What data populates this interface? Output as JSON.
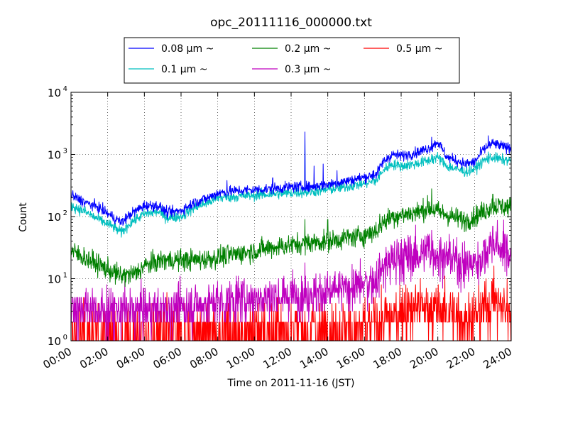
{
  "chart_data": {
    "type": "line",
    "title": "opc_20111116_000000.txt",
    "xlabel": "Time on 2011-11-16 (JST)",
    "ylabel": "Count",
    "yscale": "log",
    "xlim": [
      "00:00",
      "24:00"
    ],
    "ylim": [
      1,
      10000
    ],
    "grid": true,
    "legend_position": "top-center, above plot",
    "x_ticks": [
      "00:00",
      "02:00",
      "04:00",
      "06:00",
      "08:00",
      "10:00",
      "12:00",
      "14:00",
      "16:00",
      "18:00",
      "20:00",
      "22:00",
      "24:00"
    ],
    "y_ticks": [
      {
        "value": 1,
        "base": "10",
        "exp": "0"
      },
      {
        "value": 10,
        "base": "10",
        "exp": "1"
      },
      {
        "value": 100,
        "base": "10",
        "exp": "2"
      },
      {
        "value": 1000,
        "base": "10",
        "exp": "3"
      },
      {
        "value": 10000,
        "base": "10",
        "exp": "4"
      }
    ],
    "series": [
      {
        "name": "0.08 μm ~",
        "color": "#0000ff",
        "noise": 0.06,
        "x": [
          "00:00",
          "00:45",
          "01:30",
          "02:15",
          "02:45",
          "03:15",
          "04:00",
          "04:45",
          "05:15",
          "06:00",
          "06:45",
          "07:30",
          "08:00",
          "09:00",
          "10:00",
          "11:00",
          "12:00",
          "13:00",
          "14:00",
          "15:00",
          "16:00",
          "16:40",
          "17:00",
          "17:30",
          "18:00",
          "18:45",
          "19:30",
          "20:00",
          "20:30",
          "21:00",
          "21:30",
          "22:00",
          "22:30",
          "23:00",
          "23:30",
          "24:00"
        ],
        "y": [
          220,
          170,
          140,
          100,
          80,
          110,
          150,
          150,
          115,
          125,
          170,
          200,
          240,
          260,
          270,
          280,
          300,
          300,
          330,
          370,
          430,
          480,
          750,
          1000,
          950,
          1050,
          1250,
          1600,
          900,
          800,
          700,
          750,
          1200,
          1500,
          1350,
          1250
        ],
        "spikes": [
          [
            "12:45",
            2300
          ],
          [
            "13:15",
            650
          ],
          [
            "13:45",
            700
          ],
          [
            "16:30",
            550
          ],
          [
            "19:40",
            1900
          ],
          [
            "22:45",
            2000
          ],
          [
            "11:00",
            420
          ],
          [
            "14:30",
            550
          ],
          [
            "08:30",
            380
          ]
        ]
      },
      {
        "name": "0.1 μm ~",
        "color": "#00bfbf",
        "noise": 0.06,
        "x": [
          "00:00",
          "00:45",
          "01:30",
          "02:15",
          "02:45",
          "03:15",
          "04:00",
          "04:45",
          "05:15",
          "06:00",
          "06:45",
          "07:30",
          "08:00",
          "09:00",
          "10:00",
          "11:00",
          "12:00",
          "13:00",
          "14:00",
          "15:00",
          "16:00",
          "16:40",
          "17:00",
          "17:30",
          "18:00",
          "18:45",
          "19:30",
          "20:00",
          "20:30",
          "21:00",
          "21:30",
          "22:00",
          "22:30",
          "23:00",
          "23:30",
          "24:00"
        ],
        "y": [
          150,
          120,
          90,
          70,
          55,
          80,
          110,
          120,
          95,
          100,
          140,
          170,
          200,
          210,
          220,
          230,
          240,
          250,
          270,
          300,
          340,
          380,
          550,
          700,
          650,
          700,
          800,
          900,
          650,
          580,
          530,
          580,
          800,
          900,
          820,
          800
        ],
        "spikes": [
          [
            "12:45",
            2000
          ],
          [
            "19:40",
            1000
          ],
          [
            "22:45",
            1100
          ],
          [
            "16:30",
            480
          ]
        ]
      },
      {
        "name": "0.2 μm ~",
        "color": "#008000",
        "noise": 0.12,
        "x": [
          "00:00",
          "01:00",
          "02:00",
          "02:45",
          "03:30",
          "04:00",
          "05:00",
          "06:00",
          "07:00",
          "08:00",
          "09:00",
          "10:00",
          "11:00",
          "12:00",
          "13:00",
          "14:00",
          "15:00",
          "16:00",
          "16:40",
          "17:00",
          "17:30",
          "18:00",
          "19:00",
          "19:30",
          "20:00",
          "21:00",
          "21:30",
          "22:00",
          "22:30",
          "23:00",
          "23:30",
          "24:00"
        ],
        "y": [
          28,
          20,
          14,
          11,
          12,
          16,
          20,
          20,
          20,
          22,
          25,
          28,
          32,
          35,
          38,
          40,
          45,
          50,
          60,
          80,
          100,
          105,
          120,
          140,
          120,
          95,
          85,
          100,
          120,
          150,
          145,
          140
        ],
        "spikes": [
          [
            "12:45",
            90
          ],
          [
            "16:50",
            110
          ],
          [
            "19:40",
            280
          ],
          [
            "23:00",
            230
          ],
          [
            "14:00",
            90
          ]
        ]
      },
      {
        "name": "0.3 μm ~",
        "color": "#bf00bf",
        "noise": 0.22,
        "x": [
          "00:00",
          "02:00",
          "04:00",
          "06:00",
          "08:00",
          "10:00",
          "12:00",
          "14:00",
          "15:00",
          "16:00",
          "16:40",
          "17:00",
          "17:30",
          "18:00",
          "19:00",
          "19:30",
          "20:00",
          "21:00",
          "21:30",
          "22:00",
          "22:30",
          "23:00",
          "23:30",
          "24:00"
        ],
        "y": [
          3.5,
          3.2,
          3.2,
          3.5,
          4.2,
          5,
          5.5,
          6,
          7,
          8,
          10,
          15,
          20,
          22,
          25,
          30,
          25,
          20,
          16,
          18,
          25,
          40,
          30,
          25
        ],
        "spikes": [
          [
            "19:40",
            60
          ],
          [
            "23:00",
            70
          ],
          [
            "12:45",
            18
          ],
          [
            "16:50",
            20
          ]
        ]
      },
      {
        "name": "0.5 μm ~",
        "color": "#ff0000",
        "noise": 0.3,
        "x": [
          "00:00",
          "04:00",
          "08:00",
          "12:00",
          "16:00",
          "17:00",
          "17:30",
          "18:00",
          "19:00",
          "20:00",
          "21:00",
          "22:00",
          "22:30",
          "23:00",
          "23:30",
          "24:00"
        ],
        "y": [
          1.3,
          1.3,
          1.4,
          1.5,
          1.6,
          2,
          2.5,
          3,
          3.5,
          3.2,
          2.5,
          2.2,
          3.5,
          4.5,
          3.5,
          3
        ],
        "spikes": [
          [
            "16:55",
            8
          ],
          [
            "18:10",
            6
          ],
          [
            "23:00",
            10
          ],
          [
            "19:40",
            6
          ]
        ]
      }
    ]
  }
}
